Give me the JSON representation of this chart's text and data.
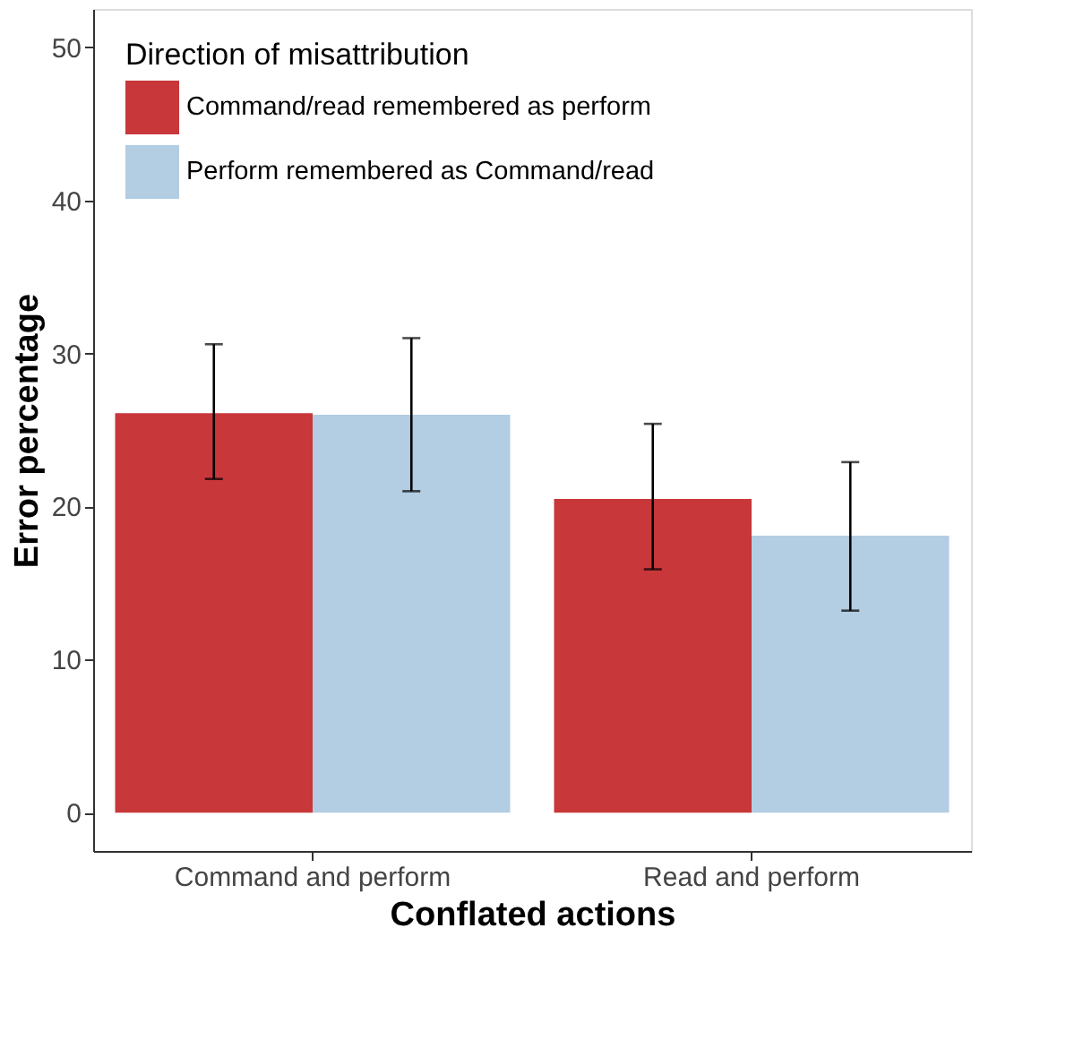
{
  "chart_data": {
    "type": "bar",
    "xlabel": "Conflated actions",
    "ylabel": "Error percentage",
    "legend_title": "Direction of misattribution",
    "categories": [
      "Command and perform",
      "Read and perform"
    ],
    "series": [
      {
        "name": "Command/read remembered as perform",
        "color": "#c8373a",
        "values": [
          26.1,
          20.5
        ],
        "errors": [
          [
            21.8,
            30.6
          ],
          [
            15.9,
            25.4
          ]
        ]
      },
      {
        "name": "Perform remembered as Command/read",
        "color": "#b3cde3",
        "values": [
          26.0,
          18.1
        ],
        "errors": [
          [
            21.0,
            31.0
          ],
          [
            13.2,
            22.9
          ]
        ]
      }
    ],
    "ylim": [
      -2.5,
      52.5
    ],
    "yticks": [
      0,
      10,
      20,
      30,
      40,
      50
    ],
    "grid": false,
    "legend": "top left"
  }
}
